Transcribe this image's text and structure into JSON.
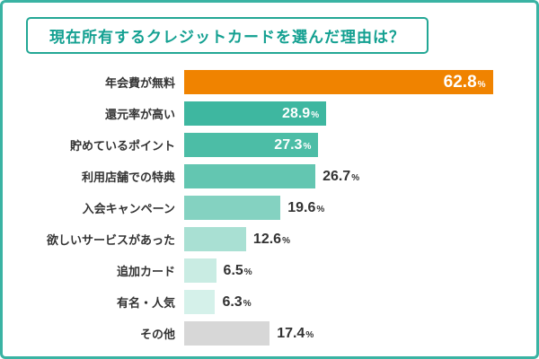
{
  "title": "現在所有するクレジットカードを選んだ理由は？",
  "colors": {
    "frame_border": "#3ab3a3",
    "title_border": "#23a795",
    "title_text": "#13a091",
    "accent_orange": "#f08300",
    "label_text": "#333333"
  },
  "chart_data": {
    "type": "bar",
    "orientation": "horizontal",
    "title": "現在所有するクレジットカードを選んだ理由は？",
    "unit": "%",
    "xlim": [
      0,
      68
    ],
    "grid": false,
    "legend": false,
    "categories": [
      "年会費が無料",
      "還元率が高い",
      "貯めているポイント",
      "利用店舗での特典",
      "入会キャンペーン",
      "欲しいサービスがあった",
      "追加カード",
      "有名・人気",
      "その他"
    ],
    "values": [
      62.8,
      28.9,
      27.3,
      26.7,
      19.6,
      12.6,
      6.5,
      6.3,
      17.4
    ],
    "points": [
      {
        "category": "年会費が無料",
        "value": 62.8,
        "color": "#f08300",
        "value_inside": true
      },
      {
        "category": "還元率が高い",
        "value": 28.9,
        "color": "#3eb7a0",
        "value_inside": true
      },
      {
        "category": "貯めているポイント",
        "value": 27.3,
        "color": "#4cbda6",
        "value_inside": true
      },
      {
        "category": "利用店舗での特典",
        "value": 26.7,
        "color": "#63c6b1",
        "value_inside": false
      },
      {
        "category": "入会キャンペーン",
        "value": 19.6,
        "color": "#84d2c1",
        "value_inside": false
      },
      {
        "category": "欲しいサービスがあった",
        "value": 12.6,
        "color": "#a9e0d3",
        "value_inside": false
      },
      {
        "category": "追加カード",
        "value": 6.5,
        "color": "#c9ece3",
        "value_inside": false
      },
      {
        "category": "有名・人気",
        "value": 6.3,
        "color": "#d5f1ea",
        "value_inside": false
      },
      {
        "category": "その他",
        "value": 17.4,
        "color": "#d7d7d7",
        "value_inside": false
      }
    ]
  }
}
